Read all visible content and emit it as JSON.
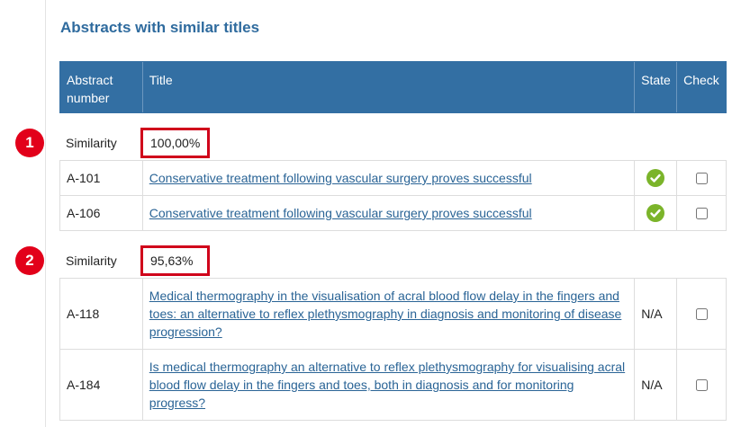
{
  "header": {
    "title": "Abstracts with similar titles"
  },
  "table": {
    "columns": [
      "Abstract number",
      "Title",
      "State",
      "Check"
    ]
  },
  "groups": [
    {
      "marker": "1",
      "label": "Similarity",
      "similarity": "100,00%",
      "rows": [
        {
          "number": "A-101",
          "title": "Conservative treatment following vascular surgery proves successful"
        },
        {
          "number": "A-106",
          "title": "Conservative treatment following vascular surgery proves successful"
        }
      ]
    },
    {
      "marker": "2",
      "label": "Similarity",
      "similarity": "95,63%",
      "rows": [
        {
          "number": "A-118",
          "title": "Medical thermography in the visualisation of acral blood flow delay in the fingers and toes: an alternative to reflex plethysmography in diagnosis and monitoring of disease progression?",
          "state": "N/A"
        },
        {
          "number": "A-184",
          "title": "Is medical thermography an alternative to reflex plethysmography for visualising acral blood flow delay in the fingers and toes, both in diagnosis and for monitoring progress?",
          "state": "N/A"
        }
      ]
    }
  ]
}
